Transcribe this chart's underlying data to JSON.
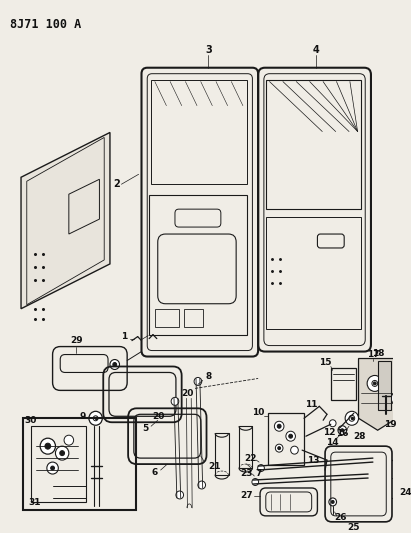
{
  "title": "8J71 100 A",
  "bg_color": "#f0ede6",
  "line_color": "#1a1a1a",
  "text_color": "#111111",
  "fig_width": 4.11,
  "fig_height": 5.33
}
